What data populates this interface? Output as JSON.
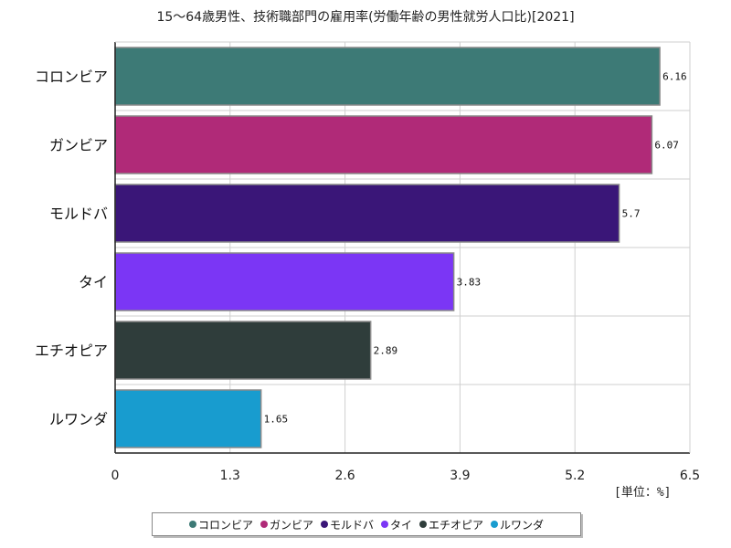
{
  "chart_data": {
    "type": "bar",
    "orientation": "horizontal",
    "title": "15〜64歳男性、技術職部門の雇用率(労働年齢の男性就労人口比)[2021]",
    "unit_label": "[単位：%]",
    "categories": [
      "コロンビア",
      "ガンビア",
      "モルドバ",
      "タイ",
      "エチオピア",
      "ルワンダ"
    ],
    "values": [
      6.16,
      6.07,
      5.7,
      3.83,
      2.89,
      1.65
    ],
    "value_labels": [
      "6.16",
      "6.07",
      "5.7",
      "3.83",
      "2.89",
      "1.65"
    ],
    "colors": [
      "#3d7a76",
      "#b02a78",
      "#3a1678",
      "#7b36f5",
      "#2f3d3b",
      "#189ccf"
    ],
    "xlim": [
      0,
      6.5
    ],
    "xticks": [
      "0",
      "1.3",
      "2.6",
      "3.9",
      "5.2",
      "6.5"
    ],
    "grid": true,
    "legend_position": "bottom"
  }
}
